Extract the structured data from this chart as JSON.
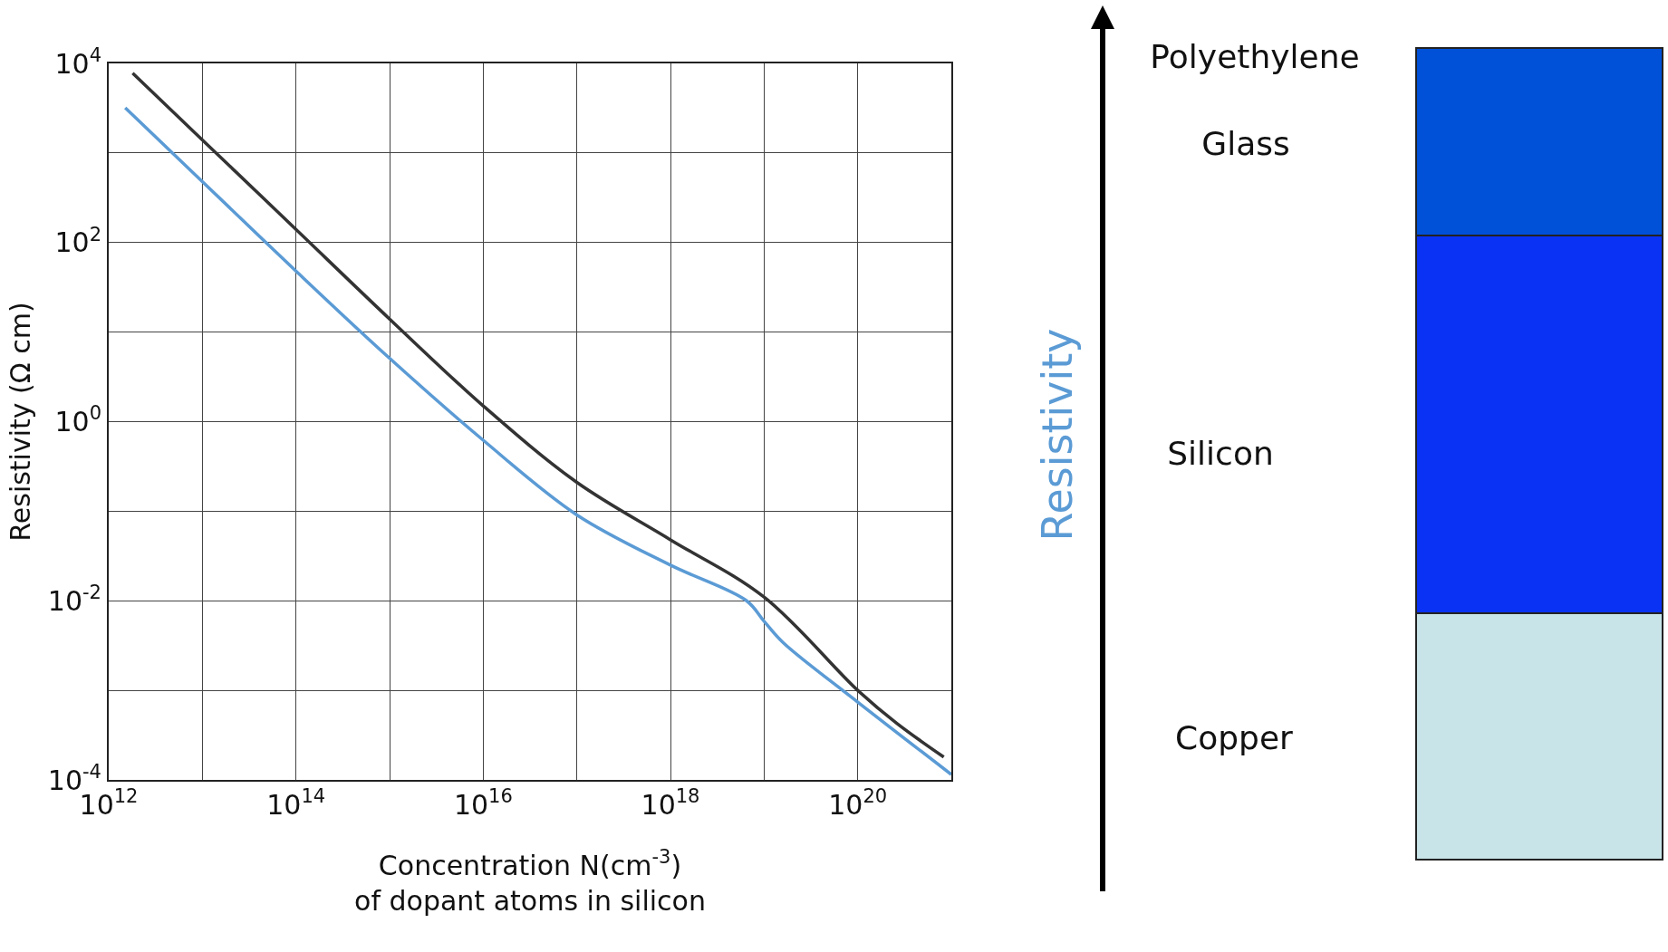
{
  "chart_data": [
    {
      "type": "line",
      "xlabel": "Concentration N(cm$^{-3}$)\nof dopant atoms in silicon",
      "ylabel": "Resistivity (Ω cm)",
      "log": "xy",
      "grid": true,
      "line_style": "solid",
      "marker": "none",
      "xlim": [
        1000000000000.0,
        1e+21
      ],
      "ylim": [
        0.0001,
        10000
      ],
      "xticks": [
        {
          "value": 1000000000000.0,
          "label": "10$^{12}$"
        },
        {
          "value": 10000000000000.0,
          "label": null
        },
        {
          "value": 100000000000000.0,
          "label": "10$^{14}$"
        },
        {
          "value": 1000000000000000.0,
          "label": null
        },
        {
          "value": 1e+16,
          "label": "10$^{16}$"
        },
        {
          "value": 1e+17,
          "label": null
        },
        {
          "value": 1e+18,
          "label": "10$^{18}$"
        },
        {
          "value": 1e+19,
          "label": null
        },
        {
          "value": 1e+20,
          "label": "10$^{20}$"
        },
        {
          "value": 1e+21,
          "label": null
        }
      ],
      "yticks": [
        {
          "value": 0.0001,
          "label": "10$^{-4}$"
        },
        {
          "value": 0.001,
          "label": null
        },
        {
          "value": 0.01,
          "label": "10$^{-2}$"
        },
        {
          "value": 0.1,
          "label": null
        },
        {
          "value": 1,
          "label": "10$^{0}$"
        },
        {
          "value": 10,
          "label": null
        },
        {
          "value": 100,
          "label": "10$^{2}$"
        },
        {
          "value": 1000,
          "label": null
        },
        {
          "value": 10000,
          "label": "10$^{4}$"
        }
      ],
      "series": [
        {
          "color": "#333333",
          "x": [
            1800000000000.0,
            10000000000000.0,
            100000000000000.0,
            1000000000000000.0,
            1e+16,
            1e+17,
            1e+18,
            1e+19,
            1e+20,
            2.6e+20,
            8.3e+20
          ],
          "values": [
            7800,
            1400,
            140,
            14,
            1.5,
            0.21,
            0.048,
            0.011,
            0.001,
            0.00043,
            0.00018
          ]
        },
        {
          "color": "#5b9bd5",
          "x": [
            1500000000000.0,
            10000000000000.0,
            100000000000000.0,
            1000000000000000.0,
            1e+16,
            1e+17,
            1e+18,
            6.5e+18,
            1e+19,
            1.6e+19,
            1e+20,
            1e+21
          ],
          "values": [
            3200,
            480,
            48,
            5.1,
            0.62,
            0.091,
            0.025,
            0.01,
            0.0059,
            0.0034,
            0.00074,
            0.000115
          ]
        }
      ]
    },
    {
      "type": "other",
      "ylabel": "Resistivity",
      "annotations": [
        "Polyethylene",
        "Glass",
        "Silicon",
        "Copper"
      ]
    }
  ]
}
